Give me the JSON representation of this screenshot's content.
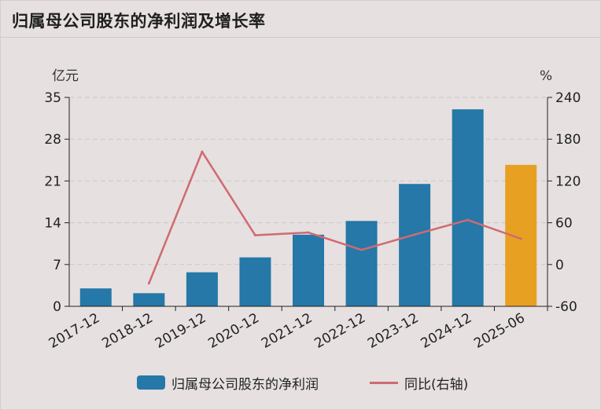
{
  "header": {
    "title": "归属母公司股东的净利润及增长率"
  },
  "chart_data": {
    "type": "bar",
    "categories": [
      "2017-12",
      "2018-12",
      "2019-12",
      "2020-12",
      "2021-12",
      "2022-12",
      "2023-12",
      "2024-12",
      "2025-06"
    ],
    "series": [
      {
        "name": "归属母公司股东的净利润",
        "kind": "bar",
        "axis": "left",
        "values": [
          3.0,
          2.2,
          5.7,
          8.2,
          12.0,
          14.3,
          20.5,
          33.0,
          23.7
        ]
      },
      {
        "name": "同比(右轴)",
        "kind": "line",
        "axis": "right",
        "values": [
          null,
          -27,
          162,
          42,
          46,
          21,
          43,
          64,
          37
        ]
      }
    ],
    "left_axis": {
      "unit": "亿元",
      "ylim": [
        0,
        35
      ],
      "ticks": [
        "0",
        "7",
        "14",
        "21",
        "28",
        "35"
      ]
    },
    "right_axis": {
      "unit": "%",
      "ylim": [
        -60,
        240
      ],
      "ticks": [
        "-60",
        "0",
        "60",
        "120",
        "180",
        "240"
      ]
    },
    "highlight_category": "2025-06",
    "colors": {
      "bar": "#2578a7",
      "bar_highlight": "#e8a023",
      "line": "#d06a72",
      "grid": "#cfc6c6",
      "axis": "#222222"
    },
    "grid": true,
    "legend_position": "bottom-center"
  }
}
